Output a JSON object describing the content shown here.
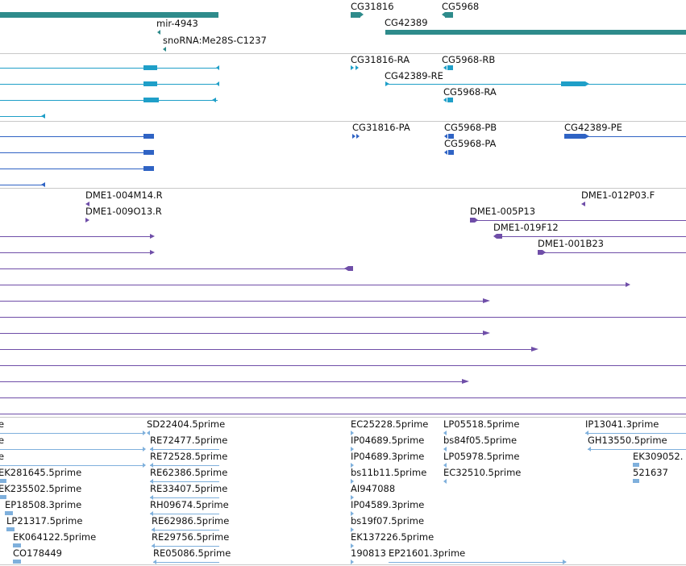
{
  "colors": {
    "gene": "#2e8b8b",
    "transcript": "#1f9fc8",
    "protein": "#2f63c4",
    "clone": "#6f4ea8",
    "est": "#7fb0dc",
    "separator": "#c8c8c8"
  },
  "genes_track": {
    "labels": [
      "CG31816",
      "CG5968",
      "mir-4943",
      "CG42389",
      "snoRNA:Me28S-C1237"
    ]
  },
  "transcripts_track": {
    "labels": [
      "CG31816-RA",
      "CG5968-RB",
      "CG42389-RE",
      "CG5968-RA"
    ]
  },
  "proteins_track": {
    "labels": [
      "CG31816-PA",
      "CG5968-PB",
      "CG42389-PE",
      "CG5968-PA"
    ]
  },
  "clones_track": {
    "labels": [
      "DME1-004M14.R",
      "DME1-012P03.F",
      "DME1-009O13.R",
      "DME1-005P13",
      "DME1-019F12",
      "DME1-001B23"
    ]
  },
  "est_track": {
    "labels": [
      "e",
      "SD22404.5prime",
      "EC25228.5prime",
      "LP05518.5prime",
      "IP13041.3prime",
      "e",
      "RE72477.5prime",
      "IP04689.5prime",
      "bs84f05.5prime",
      "GH13550.5prime",
      "e",
      "RE72528.5prime",
      "IP04689.3prime",
      "LP05978.5prime",
      "EK309052.",
      "EK281645.5prime",
      "RE62386.5prime",
      "bs11b11.5prime",
      "EC32510.5prime",
      "521637",
      "EK235502.5prime",
      "RE33407.5prime",
      "AI947088",
      "EP18508.3prime",
      "RH09674.5prime",
      "IP04589.3prime",
      "LP21317.5prime",
      "RE62986.5prime",
      "bs19f07.5prime",
      "EK064122.5prime",
      "RE29756.5prime",
      "EK137226.5prime",
      "CO178449",
      "RE05086.5prime",
      "190813",
      "EP21601.3prime"
    ]
  }
}
